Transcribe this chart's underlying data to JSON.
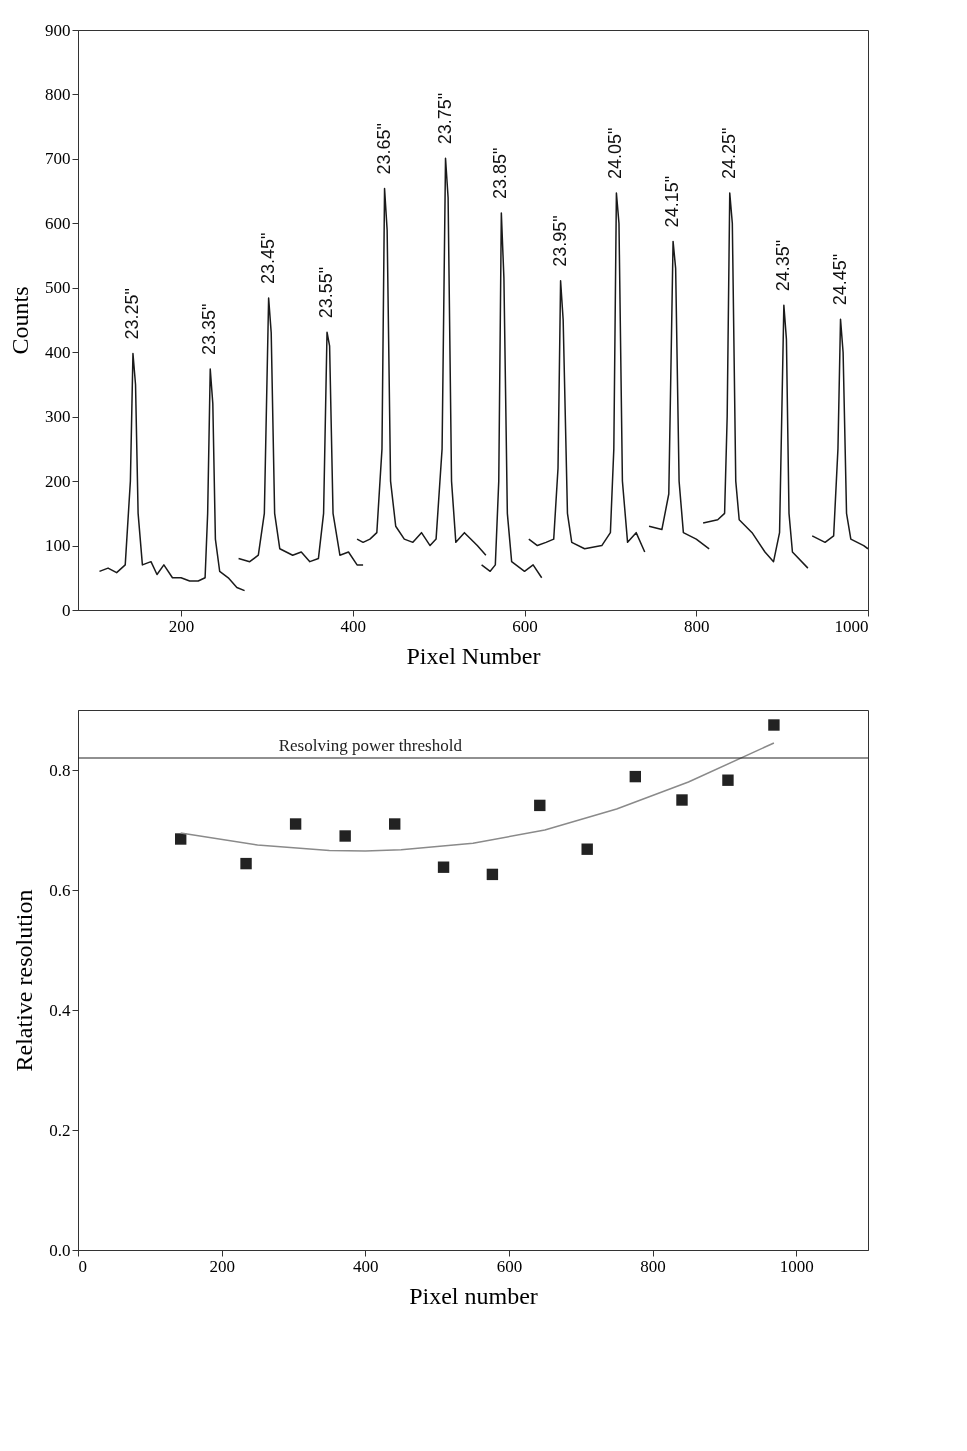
{
  "chart_data": [
    {
      "type": "line",
      "xlabel": "Pixel Number",
      "ylabel": "Counts",
      "xlim": [
        80,
        1000
      ],
      "xticks": [
        200,
        400,
        600,
        800,
        1000
      ],
      "ylim": [
        0,
        900
      ],
      "yticks": [
        0,
        100,
        200,
        300,
        400,
        500,
        600,
        700,
        800,
        900
      ],
      "grid": false,
      "series": [
        {
          "color": "#1a1a1a",
          "x": [
            105,
            115,
            125,
            135,
            141,
            144,
            147,
            150,
            155,
            165,
            172,
            180,
            190,
            200,
            210,
            220,
            228,
            231,
            234,
            237,
            240,
            245,
            255,
            265,
            274
          ],
          "values": [
            60,
            65,
            58,
            70,
            200,
            398,
            350,
            150,
            70,
            75,
            55,
            70,
            50,
            50,
            45,
            45,
            50,
            150,
            374,
            320,
            110,
            60,
            50,
            35,
            30
          ]
        },
        {
          "color": "#1a1a1a",
          "x": [
            267,
            280,
            290,
            297,
            302,
            305,
            309,
            315,
            330,
            340,
            350,
            360,
            366,
            370,
            373,
            377,
            385,
            395,
            405,
            412
          ],
          "values": [
            80,
            75,
            85,
            150,
            484,
            430,
            150,
            95,
            85,
            90,
            75,
            80,
            150,
            431,
            410,
            150,
            85,
            90,
            70,
            70
          ]
        },
        {
          "color": "#1a1a1a",
          "x": [
            405,
            412,
            420,
            428,
            434,
            437,
            440,
            444,
            450,
            460,
            470,
            480,
            490,
            497,
            504,
            508,
            511,
            515,
            520,
            530,
            545,
            555
          ],
          "values": [
            110,
            105,
            110,
            120,
            250,
            654,
            590,
            200,
            130,
            110,
            105,
            120,
            100,
            110,
            250,
            701,
            640,
            200,
            105,
            120,
            100,
            85
          ]
        },
        {
          "color": "#1a1a1a",
          "x": [
            550,
            560,
            566,
            570,
            573,
            576,
            580,
            585,
            600,
            610,
            620
          ],
          "values": [
            70,
            60,
            70,
            200,
            616,
            515,
            150,
            75,
            60,
            70,
            50
          ]
        },
        {
          "color": "#1a1a1a",
          "x": [
            605,
            615,
            625,
            634,
            639,
            642,
            645,
            650,
            655,
            670,
            690,
            700,
            704,
            707,
            710,
            714,
            720,
            730,
            740
          ],
          "values": [
            110,
            100,
            105,
            110,
            220,
            511,
            450,
            150,
            105,
            95,
            100,
            120,
            250,
            647,
            600,
            200,
            105,
            120,
            90
          ]
        },
        {
          "color": "#1a1a1a",
          "x": [
            745,
            760,
            768,
            773,
            776,
            780,
            785,
            800,
            815
          ],
          "values": [
            130,
            125,
            180,
            572,
            530,
            200,
            120,
            110,
            95
          ]
        },
        {
          "color": "#1a1a1a",
          "x": [
            808,
            825,
            833,
            836,
            839,
            842,
            846,
            850,
            865,
            880,
            890,
            897,
            902,
            905,
            908,
            912,
            930
          ],
          "values": [
            135,
            140,
            150,
            300,
            647,
            600,
            200,
            140,
            120,
            90,
            75,
            120,
            473,
            420,
            150,
            90,
            65
          ]
        },
        {
          "color": "#1a1a1a",
          "x": [
            935,
            950,
            960,
            965,
            968,
            971,
            975,
            980,
            995,
            1000
          ],
          "values": [
            115,
            105,
            115,
            250,
            451,
            400,
            150,
            110,
            100,
            95
          ]
        }
      ],
      "annotations": [
        {
          "text": "23.25\"",
          "x": 144,
          "y": 398
        },
        {
          "text": "23.35\"",
          "x": 234,
          "y": 374
        },
        {
          "text": "23.45\"",
          "x": 302,
          "y": 484
        },
        {
          "text": "23.55\"",
          "x": 370,
          "y": 431
        },
        {
          "text": "23.65\"",
          "x": 437,
          "y": 654
        },
        {
          "text": "23.75\"",
          "x": 508,
          "y": 701
        },
        {
          "text": "23.85\"",
          "x": 573,
          "y": 616
        },
        {
          "text": "23.95\"",
          "x": 642,
          "y": 511
        },
        {
          "text": "24.05\"",
          "x": 707,
          "y": 647
        },
        {
          "text": "24.15\"",
          "x": 773,
          "y": 572
        },
        {
          "text": "24.25\"",
          "x": 839,
          "y": 647
        },
        {
          "text": "24.35\"",
          "x": 902,
          "y": 473
        },
        {
          "text": "24.45\"",
          "x": 968,
          "y": 451
        }
      ]
    },
    {
      "type": "scatter",
      "xlabel": "Pixel number",
      "ylabel": "Relative resolution",
      "xlim": [
        0,
        1100
      ],
      "xticks": [
        0,
        200,
        400,
        600,
        800,
        1000
      ],
      "ylim": [
        0,
        0.9
      ],
      "yticks": [
        {
          "value": 0,
          "label": "0.0"
        },
        0.2,
        0.4,
        0.6,
        0.8
      ],
      "grid": false,
      "ref_lines": [
        {
          "axis": "y",
          "value": 0.82,
          "label": "Resolving power threshold"
        }
      ],
      "series": [
        {
          "color": "#222222",
          "marker": "square",
          "x": [
            143,
            234,
            303,
            372,
            441,
            509,
            577,
            643,
            709,
            776,
            841,
            905,
            969
          ],
          "values": [
            0.685,
            0.644,
            0.71,
            0.69,
            0.71,
            0.638,
            0.626,
            0.741,
            0.668,
            0.789,
            0.75,
            0.783,
            0.875
          ]
        },
        {
          "type": "line",
          "color": "#8a8a8a",
          "x": [
            143,
            250,
            350,
            400,
            450,
            550,
            650,
            750,
            850,
            969
          ],
          "values": [
            0.695,
            0.675,
            0.666,
            0.665,
            0.667,
            0.678,
            0.7,
            0.735,
            0.78,
            0.845
          ]
        }
      ]
    }
  ]
}
